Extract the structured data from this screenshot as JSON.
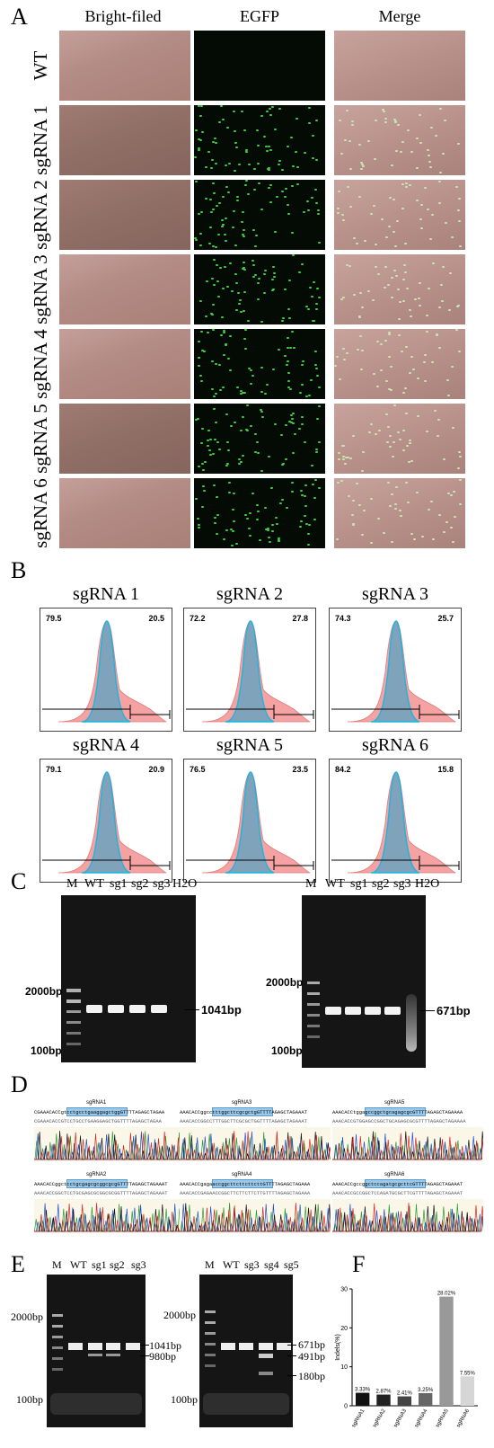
{
  "panelA": {
    "label": "A",
    "col_headers": [
      "Bright-filed",
      "EGFP",
      "Merge"
    ],
    "rows": [
      "WT",
      "sgRNA 1",
      "sgRNA 2",
      "sgRNA 3",
      "sgRNA 4",
      "sgRNA 5",
      "sgRNA 6"
    ]
  },
  "panelB": {
    "label": "B",
    "histograms": [
      {
        "title": "sgRNA 1",
        "left": "79.5",
        "right": "20.5"
      },
      {
        "title": "sgRNA 2",
        "left": "72.2",
        "right": "27.8"
      },
      {
        "title": "sgRNA 3",
        "left": "74.3",
        "right": "25.7"
      },
      {
        "title": "sgRNA 4",
        "left": "79.1",
        "right": "20.9"
      },
      {
        "title": "sgRNA 5",
        "left": "76.5",
        "right": "23.5"
      },
      {
        "title": "sgRNA 6",
        "left": "84.2",
        "right": "15.8"
      }
    ]
  },
  "panelC": {
    "label": "C",
    "gel1": {
      "lanes": [
        "M",
        "WT",
        "sg1",
        "sg2",
        "sg3",
        "H2O"
      ],
      "markers": [
        "2000bp",
        "100bp"
      ],
      "band": "1041bp"
    },
    "gel2": {
      "lanes": [
        "M",
        "WT",
        "sg1",
        "sg2",
        "sg3",
        "H2O"
      ],
      "markers": [
        "2000bp",
        "100bp"
      ],
      "band": "671bp"
    }
  },
  "panelD": {
    "label": "D",
    "sequences": [
      {
        "name": "sgRNA1",
        "seq": "CGAAACACCgtcctgcctgaaggagctggGTTTTAGAGCTAGAA",
        "ref": "CGAAACACCGTCCTGCCTGAAGGAGCTGGTTTTAGAGCTAGAA"
      },
      {
        "name": "sgRNA3",
        "seq": "AAACACCggcctttggcttcgcgctgGTTTTAGAGCTAGAAAT",
        "ref": "AAACACCGGCCTTTGGCTTCGCGCTGGTTTTAGAGCTAGAAAT"
      },
      {
        "name": "sgRNA5",
        "seq": "AAACACCtggagccggctgcagagcgcGTTTTAGAGCTAGAAAA",
        "ref": "AAACACCGTGGAGCCGGCTGCAGAGCGCGTTTTAGAGCTAGAAAA"
      },
      {
        "name": "sgRNA2",
        "seq": "AAACACCggctcctgcgagcgcggcgcgGTTTTAGAGCTAGAAAT",
        "ref": "AAACACCGGCTCCTGCGAGCGCGGCGCGGTTTTAGAGCTAGAAAT"
      },
      {
        "name": "sgRNA4",
        "seq": "AAACACCgagaaccggcttcttcttcttGTTTTAGAGCTAGAAA",
        "ref": "AAACACCGAGAACCGGCTTCTTCTTCTTGTTTTAGAGCTAGAAA"
      },
      {
        "name": "sgRNA6",
        "seq": "AAACACCgccggctccagatgcgcttcGTTTTAGAGCTAGAAAT",
        "ref": "AAACACCGCCGGCTCCAGATGCGCTTCGTTTTAGAGCTAGAAAT"
      }
    ]
  },
  "panelE": {
    "label": "E",
    "gel1": {
      "lanes": [
        "M",
        "WT",
        "sg1",
        "sg2",
        "sg3"
      ],
      "markers": [
        "2000bp",
        "100bp"
      ],
      "bands": [
        "1041bp",
        "980bp"
      ]
    },
    "gel2": {
      "lanes": [
        "M",
        "WT",
        "sg3",
        "sg4",
        "sg5"
      ],
      "markers": [
        "2000bp",
        "100bp"
      ],
      "bands": [
        "671bp",
        "491bp",
        "180bp"
      ]
    }
  },
  "panelF": {
    "label": "F",
    "chart_data": {
      "type": "bar",
      "ylabel": "Indels(%)",
      "ylim": [
        0,
        30
      ],
      "yticks": [
        "0",
        "10",
        "20",
        "30"
      ],
      "categories": [
        "sgRNA1",
        "sgRNA2",
        "sgRNA3",
        "sgRNA4",
        "sgRNA5",
        "sgRNA6"
      ],
      "values": [
        3.33,
        2.87,
        2.41,
        3.25,
        28.02,
        7.55
      ],
      "value_labels": [
        "3.33%",
        "2.87%",
        "2.41%",
        "3.25%",
        "28.02%",
        "7.55%"
      ],
      "colors": [
        "#111111",
        "#222222",
        "#444444",
        "#666666",
        "#999999",
        "#d6d6d6"
      ]
    }
  }
}
